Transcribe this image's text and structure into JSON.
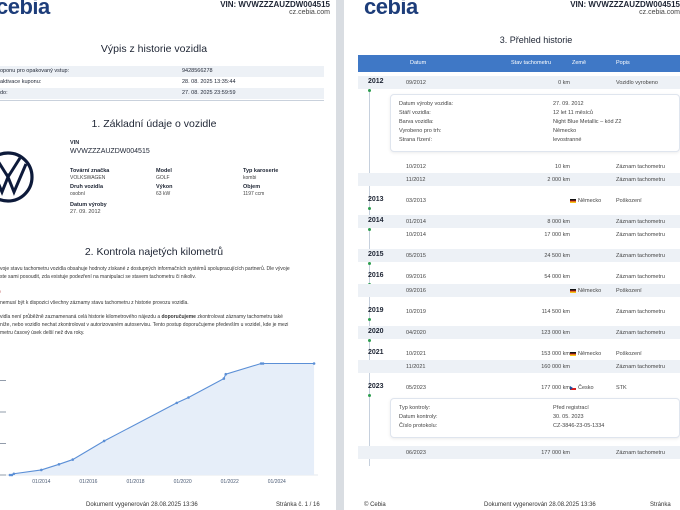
{
  "header": {
    "logo": "cebia",
    "vin_label": "VIN: WVWZZZAUZDW004515",
    "site": "cz.cebia.com"
  },
  "left": {
    "title": "Výpis z historie vozidla",
    "coupon_rows": [
      {
        "k": "oponu pro opakovaný vstup:",
        "v": "9428566278"
      },
      {
        "k": "aktivace kuponu:",
        "v": "28. 08. 2025 13:35:44"
      },
      {
        "k": "do:",
        "v": "27. 08. 2025 23:59:59"
      }
    ],
    "section1": "1. Základní údaje o vozidle",
    "vin_label": "VIN",
    "vin_value": "WVWZZZAUZDW004515",
    "fields": [
      {
        "k": "Tovární značka",
        "v": "VOLKSWAGEN"
      },
      {
        "k": "Model",
        "v": "GOLF"
      },
      {
        "k": "Typ karoserie",
        "v": "kombi"
      },
      {
        "k": "Druh vozidla",
        "v": "osobní"
      },
      {
        "k": "Výkon",
        "v": "63 kW"
      },
      {
        "k": "Objem",
        "v": "1197 ccm"
      },
      {
        "k": "Datum výroby",
        "v": "27. 09. 2012"
      }
    ],
    "section2": "2. Kontrola najetých kilometrů",
    "para1": "voje stavu tachometru vozidla obsahuje hodnoty získané z dostupných informačních systémů spolupracujících partnerů. Dle vývoje",
    "para2": "ste sami posoudit, zda existuje podezření na manipulaci se stavem tachometru či nikoliv.",
    "para3": "nemusí být k dispozici všechny záznamy stavu tachometru z historie provozu vozidla.",
    "para4a": "vidla není průběžně zaznamenaná celá historie kilometrového nájezdu a ",
    "para4b": "doporučujeme",
    "para4c": " zkontrolovat záznamy tachometru také",
    "para5": "níže, nebo vozidlo nechat zkontrolovat v autorizovaném autoservisu. Tento postup doporučujeme především u vozidel, kde je mezi",
    "para6": "metru časový úsek delší než dva roky.",
    "footer": "Dokument vygenerován 28.08.2025 13:36",
    "page": "Stránka č. 1 / 16"
  },
  "chart_data": {
    "type": "line",
    "x_ticks": [
      "01/2014",
      "01/2016",
      "01/2018",
      "01/2020",
      "01/2022",
      "01/2024"
    ],
    "x": [
      "09/2012",
      "10/2012",
      "11/2012",
      "01/2014",
      "10/2014",
      "05/2015",
      "09/2016",
      "10/2019",
      "04/2020",
      "10/2021",
      "11/2021",
      "05/2023",
      "06/2023",
      "08/2025"
    ],
    "values": [
      0,
      10,
      2000,
      8000,
      17000,
      24500,
      54000,
      114500,
      123000,
      153000,
      160000,
      177000,
      177000,
      177000
    ],
    "ylim": [
      0,
      200000
    ],
    "grid": "none",
    "title": "",
    "xlabel": "",
    "ylabel": ""
  },
  "right": {
    "title": "3. Přehled historie",
    "columns": {
      "datum": "Datum",
      "km": "Stav tachometru",
      "zeme": "Země",
      "popis": "Popis"
    },
    "rows": [
      {
        "year": "2012",
        "date": "09/2012",
        "km": "0 km",
        "country": "",
        "note": "Vozidlo vyrobeno",
        "shade": true
      },
      {
        "year": "",
        "date": "10/2012",
        "km": "10 km",
        "country": "",
        "note": "Záznam tachometru",
        "shade": false
      },
      {
        "year": "",
        "date": "11/2012",
        "km": "2 000 km",
        "country": "",
        "note": "Záznam tachometru",
        "shade": true
      },
      {
        "year": "2013",
        "date": "03/2013",
        "km": "",
        "country": "Německo",
        "flag": "de",
        "note": "Poškození",
        "shade": false
      },
      {
        "year": "2014",
        "date": "01/2014",
        "km": "8 000 km",
        "country": "",
        "note": "Záznam tachometru",
        "shade": true
      },
      {
        "year": "",
        "date": "10/2014",
        "km": "17 000 km",
        "country": "",
        "note": "Záznam tachometru",
        "shade": false
      },
      {
        "year": "2015",
        "date": "05/2015",
        "km": "24 500 km",
        "country": "",
        "note": "Záznam tachometru",
        "shade": true
      },
      {
        "year": "2016",
        "date": "09/2016",
        "km": "54 000 km",
        "country": "",
        "note": "Záznam tachometru",
        "shade": false
      },
      {
        "year": "",
        "date": "09/2016",
        "km": "",
        "country": "Německo",
        "flag": "de",
        "note": "Poškození",
        "shade": true
      },
      {
        "year": "2019",
        "date": "10/2019",
        "km": "114 500 km",
        "country": "",
        "note": "Záznam tachometru",
        "shade": false
      },
      {
        "year": "2020",
        "date": "04/2020",
        "km": "123 000 km",
        "country": "",
        "note": "Záznam tachometru",
        "shade": true
      },
      {
        "year": "2021",
        "date": "10/2021",
        "km": "153 000 km",
        "country": "Německo",
        "flag": "de",
        "note": "Poškození",
        "shade": false
      },
      {
        "year": "",
        "date": "11/2021",
        "km": "160 000 km",
        "country": "",
        "note": "Záznam tachometru",
        "shade": true
      },
      {
        "year": "2023",
        "date": "05/2023",
        "km": "177 000 km",
        "country": "Česko",
        "flag": "cz",
        "note": "STK",
        "shade": false
      },
      {
        "year": "",
        "date": "06/2023",
        "km": "177 000 km",
        "country": "",
        "note": "Záznam tachometru",
        "shade": true
      }
    ],
    "card1": [
      {
        "k": "Datum výroby vozidla:",
        "v": "27. 09. 2012"
      },
      {
        "k": "Stáří vozidla:",
        "v": "12 let 11 měsíců"
      },
      {
        "k": "Barva vozidla:",
        "v": "Night Blue Metallic – kód Z2"
      },
      {
        "k": "Vyrobeno pro trh:",
        "v": "Německo"
      },
      {
        "k": "Strana řízení:",
        "v": "levostranné"
      }
    ],
    "card2": [
      {
        "k": "Typ kontroly:",
        "v": "Před registrací"
      },
      {
        "k": "Datum kontroly:",
        "v": "30. 05. 2023"
      },
      {
        "k": "Číslo protokolu:",
        "v": "CZ-3846-23-05-1334"
      }
    ],
    "footer_brand": "© Cebia",
    "footer": "Dokument vygenerován 28.08.2025 13:36",
    "page": "Stránka"
  }
}
